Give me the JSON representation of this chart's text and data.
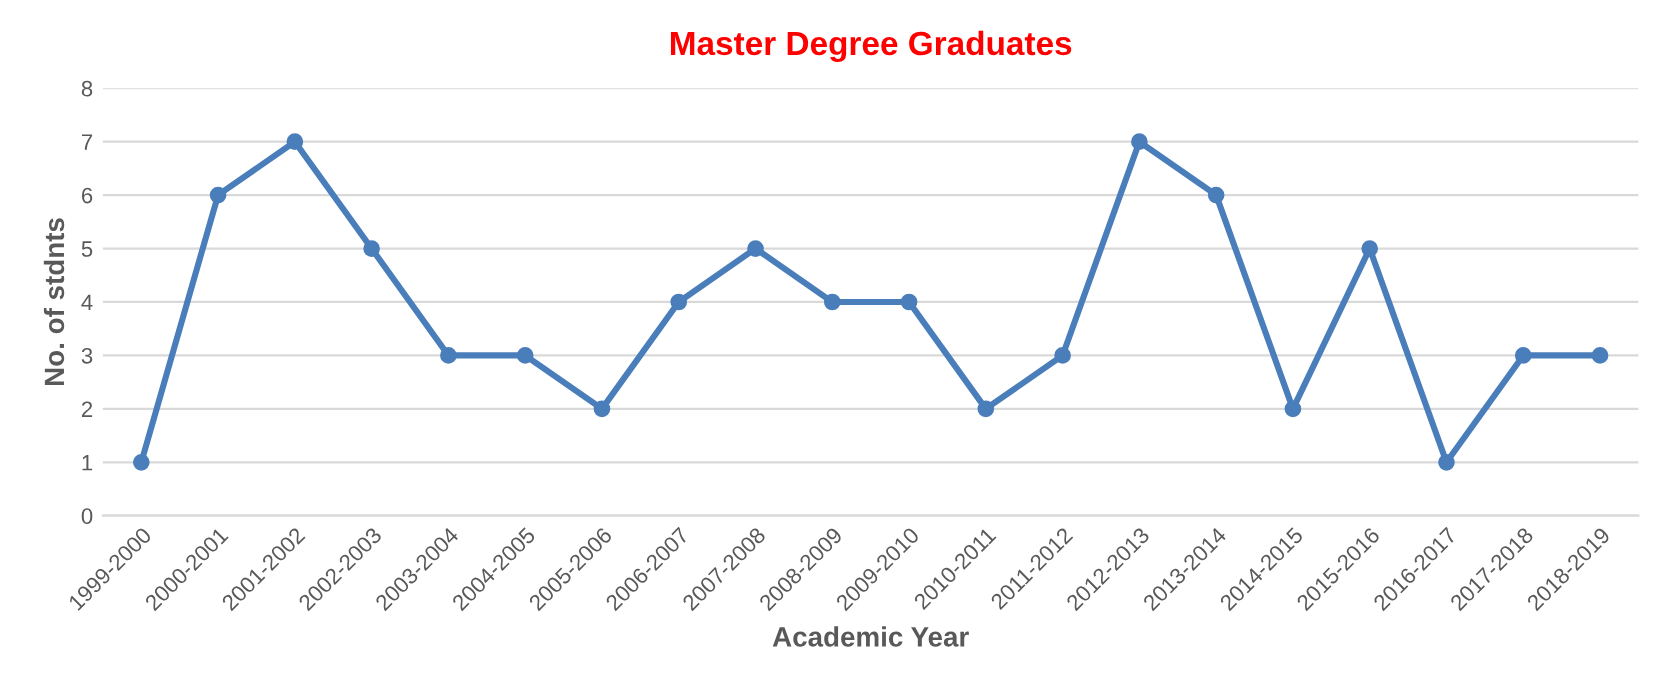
{
  "chart_data": {
    "type": "line",
    "title": "Master Degree Graduates",
    "xlabel": "Academic Year",
    "ylabel": "No. of stdnts",
    "categories": [
      "1999-2000",
      "2000-2001",
      "2001-2002",
      "2002-2003",
      "2003-2004",
      "2004-2005",
      "2005-2006",
      "2006-2007",
      "2007-2008",
      "2008-2009",
      "2009-2010",
      "2010-2011",
      "2011-2012",
      "2012-2013",
      "2013-2014",
      "2014-2015",
      "2015-2016",
      "2016-2017",
      "2017-2018",
      "2018-2019"
    ],
    "series": [
      {
        "color": "#4a7ebb",
        "values": [
          1,
          6,
          7,
          5,
          3,
          3,
          2,
          4,
          5,
          4,
          4,
          2,
          3,
          7,
          6,
          2,
          5,
          1,
          3,
          3
        ]
      }
    ],
    "ylim": [
      0,
      8
    ],
    "yticks": [
      0,
      1,
      2,
      3,
      4,
      5,
      6,
      7,
      8
    ],
    "grid": "y",
    "marker": "circle",
    "line_style": "solid"
  }
}
